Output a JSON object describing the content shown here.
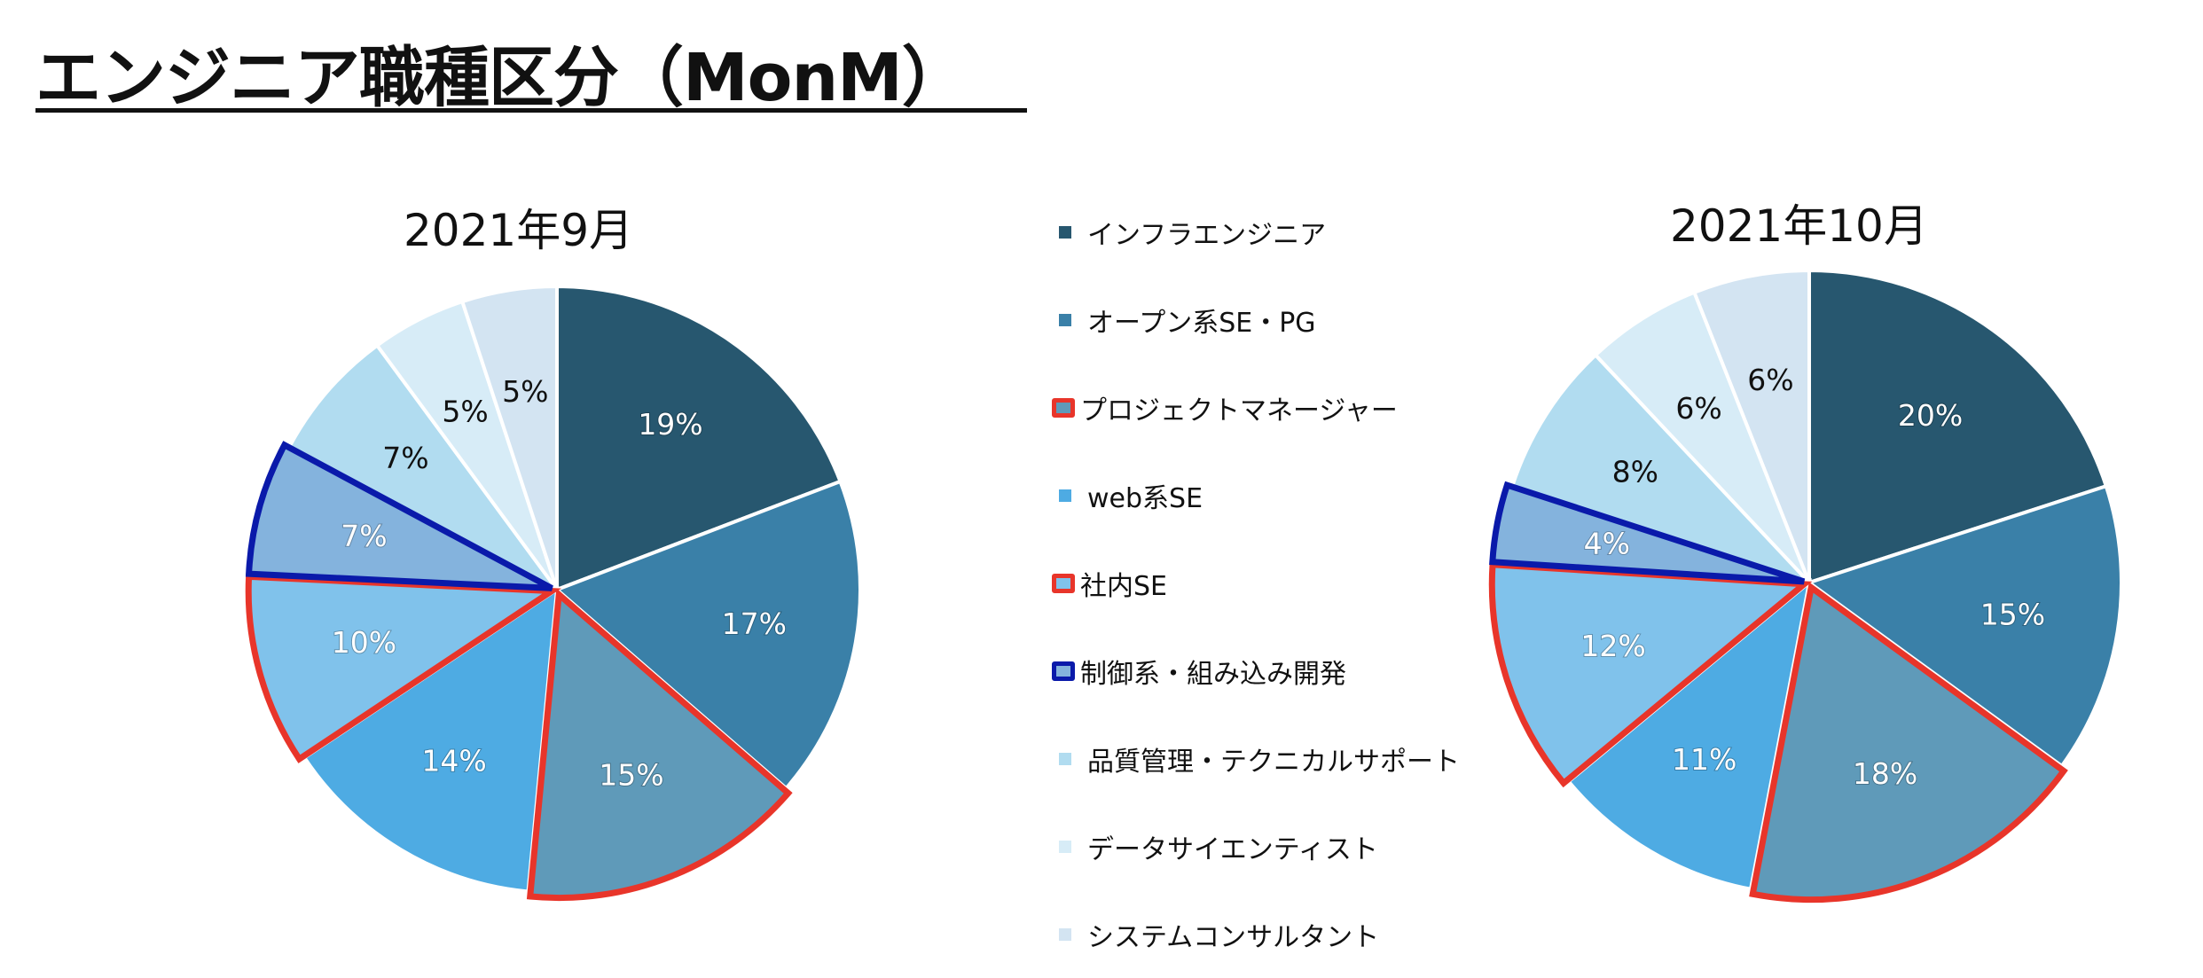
{
  "title": "エンジニア職種区分（MonM）",
  "colors": {
    "highlight_red": "#E8352A",
    "highlight_blue": "#0A1AAA"
  },
  "legend": [
    {
      "label": "インフラエンジニア",
      "color": "#27576F"
    },
    {
      "label": "オープン系SE・PG",
      "color": "#3A80A8"
    },
    {
      "label": "プロジェクトマネージャー",
      "color": "#5F9AB9",
      "outline": "#E8352A"
    },
    {
      "label": "web系SE",
      "color": "#4EABE3"
    },
    {
      "label": "社内SE",
      "color": "#80C2EB",
      "outline": "#E8352A"
    },
    {
      "label": "制御系・組み込み開発",
      "color": "#84B3DD",
      "outline": "#0A1AAA"
    },
    {
      "label": "品質管理・テクニカルサポート",
      "color": "#B1DCF0"
    },
    {
      "label": "データサイエンティスト",
      "color": "#D7ECF7"
    },
    {
      "label": "システムコンサルタント",
      "color": "#D3E4F2"
    }
  ],
  "chart_data": [
    {
      "type": "pie",
      "title": "2021年9月",
      "unit": "%",
      "categories": [
        "インフラエンジニア",
        "オープン系SE・PG",
        "プロジェクトマネージャー",
        "web系SE",
        "社内SE",
        "制御系・組み込み開発",
        "品質管理・テクニカルサポート",
        "データサイエンティスト",
        "システムコンサルタント"
      ],
      "values": [
        19,
        17,
        15,
        14,
        10,
        7,
        7,
        5,
        5
      ],
      "labels": [
        "19%",
        "17%",
        "15%",
        "14%",
        "10%",
        "7%",
        "7%",
        "5%",
        "5%"
      ]
    },
    {
      "type": "pie",
      "title": "2021年10月",
      "unit": "%",
      "categories": [
        "インフラエンジニア",
        "オープン系SE・PG",
        "プロジェクトマネージャー",
        "web系SE",
        "社内SE",
        "制御系・組み込み開発",
        "品質管理・テクニカルサポート",
        "データサイエンティスト",
        "システムコンサルタント"
      ],
      "values": [
        20,
        15,
        18,
        11,
        12,
        4,
        8,
        6,
        6
      ],
      "labels": [
        "20%",
        "15%",
        "18%",
        "11%",
        "12%",
        "4%",
        "8%",
        "6%",
        "6%"
      ]
    }
  ]
}
